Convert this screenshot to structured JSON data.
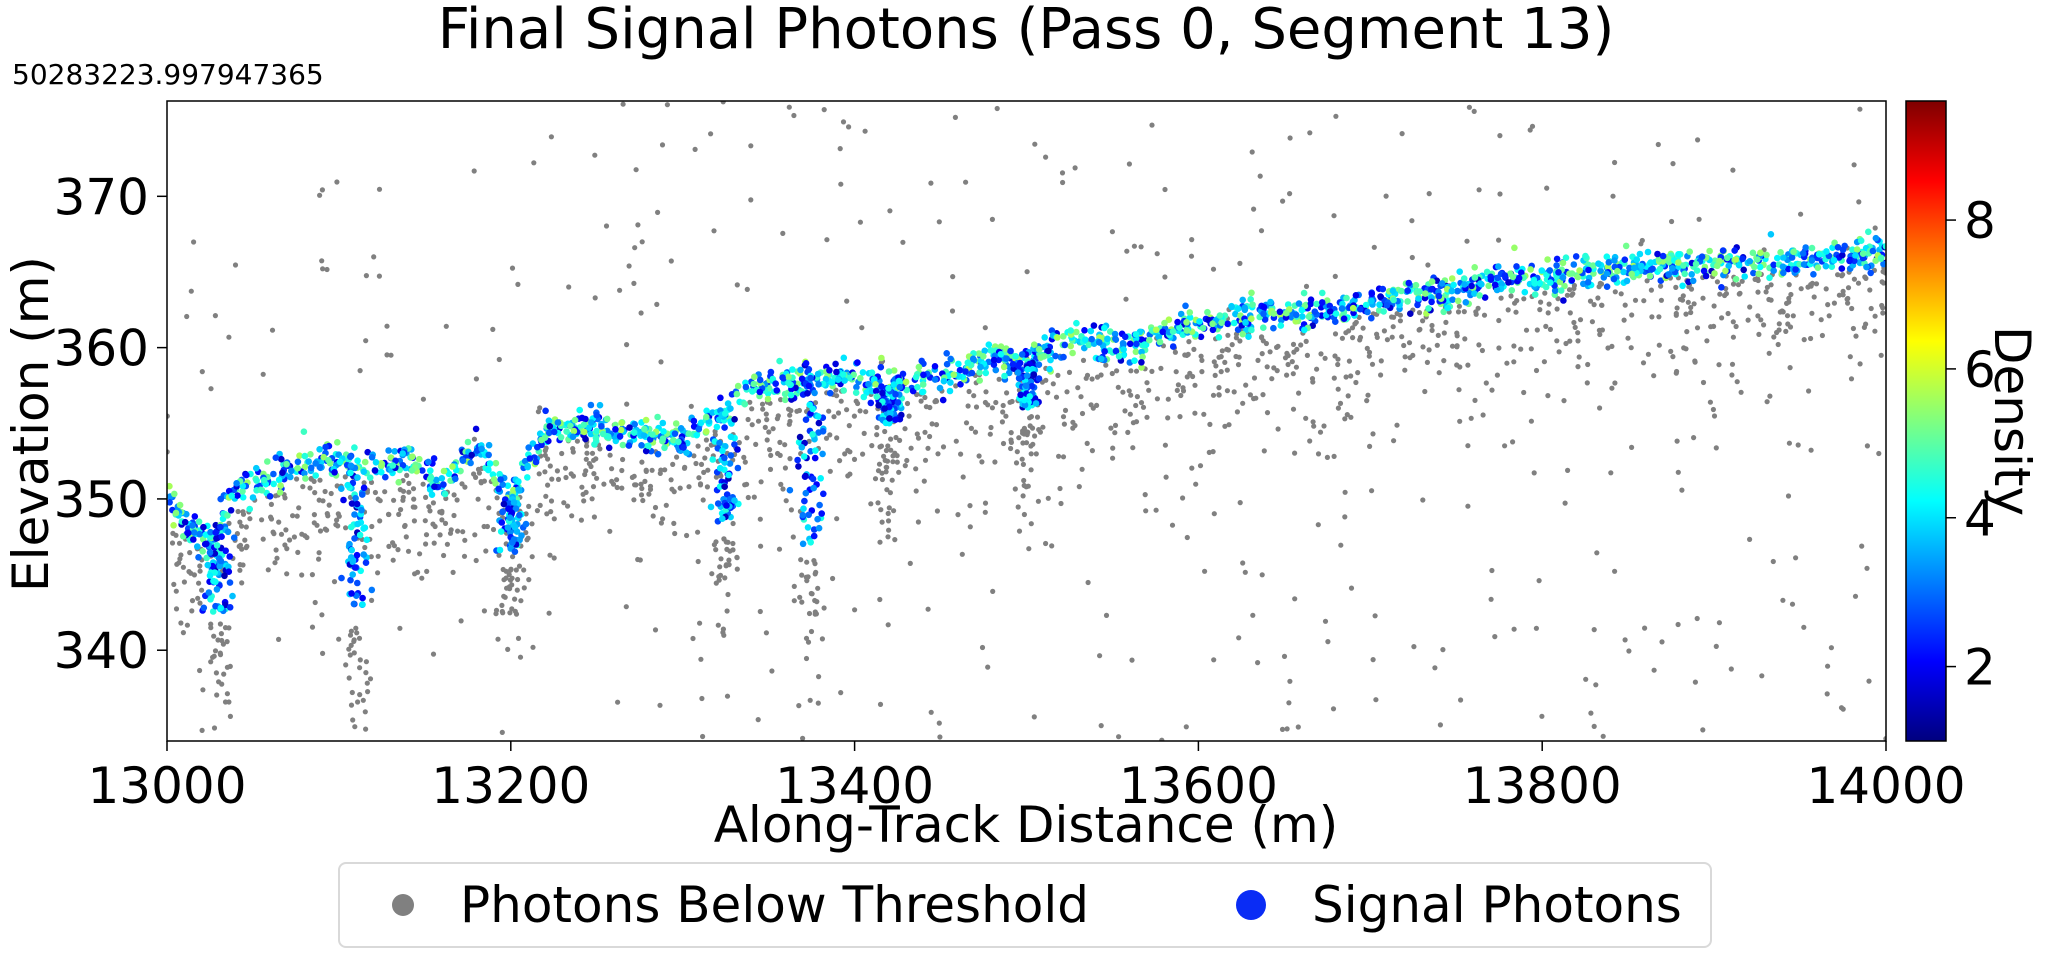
{
  "chart_data": {
    "type": "scatter",
    "title": "Final Signal Photons (Pass 0, Segment 13)",
    "offset_label": "50283223.997947365",
    "xlabel": "Along-Track Distance (m)",
    "ylabel": "Elevation (m)",
    "xlim": [
      13000,
      14000
    ],
    "ylim": [
      334,
      376.3
    ],
    "xticks": [
      13000,
      13200,
      13400,
      13600,
      13800,
      14000
    ],
    "yticks": [
      340,
      350,
      360,
      370
    ],
    "grid": false,
    "colorbar": {
      "label": "Density",
      "colormap": "jet",
      "range": [
        1,
        9.6
      ],
      "ticks": [
        2,
        4,
        6,
        8
      ]
    },
    "legend": {
      "placement": "bottom-center",
      "entries": [
        {
          "label": "Photons Below Threshold",
          "color": "#808080"
        },
        {
          "label": "Signal Photons",
          "color": "#0a2cf5"
        }
      ]
    },
    "surface_profile": {
      "x": [
        13000,
        13010,
        13025,
        13040,
        13060,
        13080,
        13100,
        13120,
        13140,
        13160,
        13180,
        13200,
        13220,
        13240,
        13260,
        13280,
        13300,
        13320,
        13340,
        13360,
        13380,
        13400,
        13420,
        13440,
        13460,
        13480,
        13500,
        13520,
        13540,
        13560,
        13580,
        13600,
        13620,
        13640,
        13660,
        13680,
        13700,
        13720,
        13740,
        13760,
        13780,
        13800,
        13820,
        13840,
        13860,
        13880,
        13900,
        13920,
        13940,
        13960,
        13980,
        14000
      ],
      "y": [
        349.5,
        348.5,
        347,
        350.5,
        351.5,
        352.3,
        352.5,
        352,
        352.5,
        351,
        353.5,
        350,
        354.5,
        354.8,
        354.5,
        354,
        353.8,
        355.5,
        357.5,
        357.7,
        358,
        358,
        357.5,
        357.8,
        358.5,
        359.5,
        359,
        360.5,
        360.5,
        360,
        361,
        361.3,
        362,
        362.3,
        362,
        362.5,
        363,
        363.5,
        363.5,
        364,
        364.5,
        364.5,
        365,
        365.2,
        365.3,
        365.5,
        365.5,
        365.7,
        365.7,
        365.8,
        366,
        366.5
      ]
    },
    "signal_photon_dips": [
      {
        "x": 13030,
        "min_y": 342.5
      },
      {
        "x": 13110,
        "min_y": 343
      },
      {
        "x": 13200,
        "min_y": 346.5
      },
      {
        "x": 13325,
        "min_y": 348.5
      },
      {
        "x": 13375,
        "min_y": 347
      },
      {
        "x": 13420,
        "min_y": 355
      },
      {
        "x": 13500,
        "min_y": 356
      }
    ],
    "series": [
      {
        "name": "Photons Below Threshold",
        "color": "#808080",
        "point_count_approx": 1400
      },
      {
        "name": "Signal Photons",
        "color_by": "Density",
        "point_count_approx": 1900
      }
    ]
  }
}
